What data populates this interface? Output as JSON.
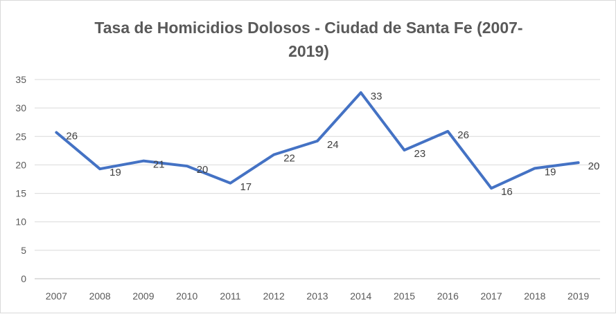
{
  "chart_data": {
    "type": "line",
    "title_line1": "Tasa de Homicidios Dolosos - Ciudad de Santa Fe (2007-",
    "title_line2": "2019)",
    "x": [
      "2007",
      "2008",
      "2009",
      "2010",
      "2011",
      "2012",
      "2013",
      "2014",
      "2015",
      "2016",
      "2017",
      "2018",
      "2019"
    ],
    "series": [
      {
        "values": [
          25.7,
          19.3,
          20.7,
          19.8,
          16.8,
          21.8,
          24.2,
          32.7,
          22.6,
          25.9,
          15.9,
          19.4,
          20.4
        ],
        "labels": [
          "26",
          "19",
          "21",
          "20",
          "17",
          "22",
          "24",
          "33",
          "23",
          "26",
          "16",
          "19",
          "20"
        ],
        "color": "#4472c4"
      }
    ],
    "ylim": [
      0,
      35
    ],
    "yticks": [
      0,
      5,
      10,
      15,
      20,
      25,
      30,
      35
    ],
    "grid": true,
    "legend": "none",
    "xlabel": "",
    "ylabel": ""
  }
}
